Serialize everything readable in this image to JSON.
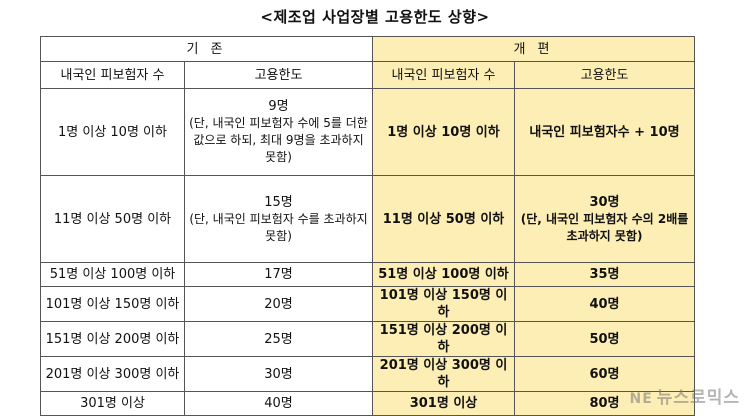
{
  "title": "<제조업 사업장별 고용한도 상향>",
  "sections": {
    "old": "기  존",
    "new": "개  편"
  },
  "columns": {
    "old_workers": "내국인 피보험자 수",
    "old_quota": "고용한도",
    "new_workers": "내국인 피보험자 수",
    "new_quota": "고용한도"
  },
  "rows": [
    {
      "old_workers": "1명 이상 10명 이하",
      "old_quota_main": "9명",
      "old_quota_note": "(단, 내국인 피보험자 수에 5를 더한 값으로 하되, 최대 9명을 초과하지 못함)",
      "new_workers": "1명 이상 10명 이하",
      "new_quota_main": "내국인 피보험자수 + 10명",
      "new_quota_note": ""
    },
    {
      "old_workers": "11명 이상 50명 이하",
      "old_quota_main": "15명",
      "old_quota_note": "(단, 내국인 피보험자 수를 초과하지 못함)",
      "new_workers": "11명 이상 50명 이하",
      "new_quota_main": "30명",
      "new_quota_note": "(단, 내국인 피보험자 수의 2배를 초과하지 못함)"
    },
    {
      "old_workers": "51명 이상 100명 이하",
      "old_quota_main": "17명",
      "new_workers": "51명 이상 100명 이하",
      "new_quota_main": "35명"
    },
    {
      "old_workers": "101명 이상 150명 이하",
      "old_quota_main": "20명",
      "new_workers": "101명 이상 150명 이하",
      "new_quota_main": "40명"
    },
    {
      "old_workers": "151명 이상 200명 이하",
      "old_quota_main": "25명",
      "new_workers": "151명 이상 200명 이하",
      "new_quota_main": "50명"
    },
    {
      "old_workers": "201명 이상 300명 이하",
      "old_quota_main": "30명",
      "new_workers": "201명 이상 300명 이하",
      "new_quota_main": "60명"
    },
    {
      "old_workers": "301명 이상",
      "old_quota_main": "40명",
      "new_workers": "301명 이상",
      "new_quota_main": "80명"
    }
  ],
  "watermark": {
    "mark": "NE",
    "text": "뉴스로믹스"
  },
  "colors": {
    "new_bg": "#fdeeb5",
    "border": "#555555"
  }
}
